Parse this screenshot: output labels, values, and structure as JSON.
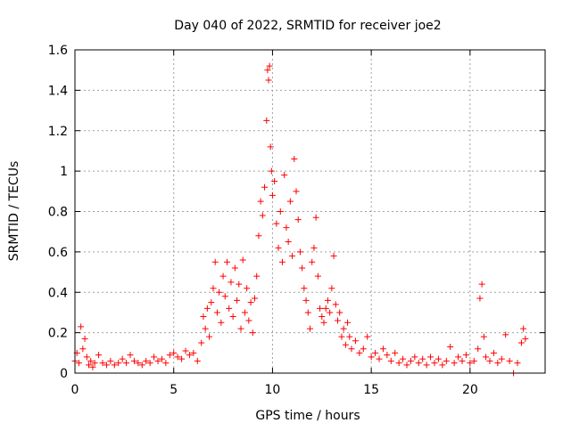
{
  "chart_data": {
    "type": "scatter",
    "title": "Day 040 of 2022, SRMTID for receiver joe2",
    "xlabel": "GPS time / hours",
    "ylabel": "SRMTID / TECUs",
    "xlim": [
      0,
      23.8
    ],
    "ylim": [
      0,
      1.6
    ],
    "xticks": [
      0,
      5,
      10,
      15,
      20
    ],
    "xtick_labels": [
      "0",
      "5",
      "10",
      "15",
      "20"
    ],
    "yticks": [
      0,
      0.2,
      0.4,
      0.6,
      0.8,
      1.0,
      1.2,
      1.4,
      1.6
    ],
    "ytick_labels": [
      "0",
      "0.2",
      "0.4",
      "0.6",
      "0.8",
      "1",
      "1.2",
      "1.4",
      "1.6"
    ],
    "grid": true,
    "marker": "plus",
    "color": "#ff0000",
    "series": [
      {
        "name": "SRMTID",
        "points": [
          [
            0.0,
            0.06
          ],
          [
            0.1,
            0.1
          ],
          [
            0.2,
            0.05
          ],
          [
            0.3,
            0.23
          ],
          [
            0.4,
            0.12
          ],
          [
            0.5,
            0.17
          ],
          [
            0.6,
            0.08
          ],
          [
            0.7,
            0.04
          ],
          [
            0.8,
            0.06
          ],
          [
            0.9,
            0.03
          ],
          [
            1.0,
            0.05
          ],
          [
            1.2,
            0.09
          ],
          [
            1.4,
            0.05
          ],
          [
            1.6,
            0.04
          ],
          [
            1.8,
            0.06
          ],
          [
            2.0,
            0.04
          ],
          [
            2.2,
            0.05
          ],
          [
            2.4,
            0.07
          ],
          [
            2.6,
            0.05
          ],
          [
            2.8,
            0.09
          ],
          [
            3.0,
            0.06
          ],
          [
            3.2,
            0.05
          ],
          [
            3.4,
            0.04
          ],
          [
            3.6,
            0.06
          ],
          [
            3.8,
            0.05
          ],
          [
            4.0,
            0.08
          ],
          [
            4.2,
            0.06
          ],
          [
            4.4,
            0.07
          ],
          [
            4.6,
            0.05
          ],
          [
            4.8,
            0.09
          ],
          [
            5.0,
            0.1
          ],
          [
            5.2,
            0.08
          ],
          [
            5.4,
            0.07
          ],
          [
            5.6,
            0.11
          ],
          [
            5.8,
            0.09
          ],
          [
            6.0,
            0.1
          ],
          [
            6.2,
            0.06
          ],
          [
            6.4,
            0.15
          ],
          [
            6.5,
            0.28
          ],
          [
            6.6,
            0.22
          ],
          [
            6.7,
            0.32
          ],
          [
            6.8,
            0.18
          ],
          [
            6.9,
            0.35
          ],
          [
            7.0,
            0.42
          ],
          [
            7.1,
            0.55
          ],
          [
            7.2,
            0.3
          ],
          [
            7.3,
            0.4
          ],
          [
            7.4,
            0.25
          ],
          [
            7.5,
            0.48
          ],
          [
            7.6,
            0.38
          ],
          [
            7.7,
            0.55
          ],
          [
            7.8,
            0.32
          ],
          [
            7.9,
            0.45
          ],
          [
            8.0,
            0.28
          ],
          [
            8.1,
            0.52
          ],
          [
            8.2,
            0.36
          ],
          [
            8.3,
            0.44
          ],
          [
            8.4,
            0.22
          ],
          [
            8.5,
            0.56
          ],
          [
            8.6,
            0.3
          ],
          [
            8.7,
            0.42
          ],
          [
            8.8,
            0.26
          ],
          [
            8.9,
            0.35
          ],
          [
            9.0,
            0.2
          ],
          [
            9.1,
            0.37
          ],
          [
            9.2,
            0.48
          ],
          [
            9.3,
            0.68
          ],
          [
            9.4,
            0.85
          ],
          [
            9.5,
            0.78
          ],
          [
            9.6,
            0.92
          ],
          [
            9.7,
            1.25
          ],
          [
            9.75,
            1.5
          ],
          [
            9.8,
            1.45
          ],
          [
            9.85,
            1.52
          ],
          [
            9.9,
            1.12
          ],
          [
            9.95,
            1.0
          ],
          [
            10.0,
            0.88
          ],
          [
            10.1,
            0.95
          ],
          [
            10.2,
            0.74
          ],
          [
            10.3,
            0.62
          ],
          [
            10.4,
            0.8
          ],
          [
            10.5,
            0.55
          ],
          [
            10.6,
            0.98
          ],
          [
            10.7,
            0.72
          ],
          [
            10.8,
            0.65
          ],
          [
            10.9,
            0.85
          ],
          [
            11.0,
            0.58
          ],
          [
            11.1,
            1.06
          ],
          [
            11.2,
            0.9
          ],
          [
            11.3,
            0.76
          ],
          [
            11.4,
            0.6
          ],
          [
            11.5,
            0.52
          ],
          [
            11.6,
            0.42
          ],
          [
            11.7,
            0.36
          ],
          [
            11.8,
            0.3
          ],
          [
            11.9,
            0.22
          ],
          [
            12.0,
            0.55
          ],
          [
            12.1,
            0.62
          ],
          [
            12.2,
            0.77
          ],
          [
            12.3,
            0.48
          ],
          [
            12.4,
            0.32
          ],
          [
            12.5,
            0.28
          ],
          [
            12.6,
            0.25
          ],
          [
            12.7,
            0.32
          ],
          [
            12.8,
            0.36
          ],
          [
            12.9,
            0.3
          ],
          [
            13.0,
            0.42
          ],
          [
            13.1,
            0.58
          ],
          [
            13.2,
            0.34
          ],
          [
            13.3,
            0.26
          ],
          [
            13.4,
            0.3
          ],
          [
            13.5,
            0.18
          ],
          [
            13.6,
            0.22
          ],
          [
            13.7,
            0.14
          ],
          [
            13.8,
            0.25
          ],
          [
            13.9,
            0.18
          ],
          [
            14.0,
            0.12
          ],
          [
            14.2,
            0.16
          ],
          [
            14.4,
            0.1
          ],
          [
            14.6,
            0.12
          ],
          [
            14.8,
            0.18
          ],
          [
            15.0,
            0.08
          ],
          [
            15.2,
            0.1
          ],
          [
            15.4,
            0.07
          ],
          [
            15.6,
            0.12
          ],
          [
            15.8,
            0.09
          ],
          [
            16.0,
            0.06
          ],
          [
            16.2,
            0.1
          ],
          [
            16.4,
            0.05
          ],
          [
            16.6,
            0.07
          ],
          [
            16.8,
            0.04
          ],
          [
            17.0,
            0.06
          ],
          [
            17.2,
            0.08
          ],
          [
            17.4,
            0.05
          ],
          [
            17.6,
            0.07
          ],
          [
            17.8,
            0.04
          ],
          [
            18.0,
            0.08
          ],
          [
            18.2,
            0.05
          ],
          [
            18.4,
            0.07
          ],
          [
            18.6,
            0.04
          ],
          [
            18.8,
            0.06
          ],
          [
            19.0,
            0.13
          ],
          [
            19.2,
            0.05
          ],
          [
            19.4,
            0.08
          ],
          [
            19.6,
            0.06
          ],
          [
            19.8,
            0.09
          ],
          [
            20.0,
            0.05
          ],
          [
            20.2,
            0.06
          ],
          [
            20.4,
            0.12
          ],
          [
            20.5,
            0.37
          ],
          [
            20.6,
            0.44
          ],
          [
            20.7,
            0.18
          ],
          [
            20.8,
            0.08
          ],
          [
            21.0,
            0.06
          ],
          [
            21.2,
            0.1
          ],
          [
            21.4,
            0.05
          ],
          [
            21.6,
            0.07
          ],
          [
            21.8,
            0.19
          ],
          [
            22.0,
            0.06
          ],
          [
            22.2,
            0.0
          ],
          [
            22.4,
            0.05
          ],
          [
            22.6,
            0.15
          ],
          [
            22.7,
            0.22
          ],
          [
            22.8,
            0.17
          ]
        ]
      }
    ]
  }
}
